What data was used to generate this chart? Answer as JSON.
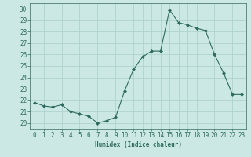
{
  "x": [
    0,
    1,
    2,
    3,
    4,
    5,
    6,
    7,
    8,
    9,
    10,
    11,
    12,
    13,
    14,
    15,
    16,
    17,
    18,
    19,
    20,
    21,
    22,
    23
  ],
  "y": [
    21.8,
    21.5,
    21.4,
    21.6,
    21.0,
    20.8,
    20.6,
    20.0,
    20.2,
    20.5,
    22.8,
    24.7,
    25.8,
    26.3,
    26.3,
    29.9,
    28.8,
    28.6,
    28.3,
    28.1,
    26.0,
    24.4,
    22.5,
    22.5
  ],
  "line_color": "#2e6b5e",
  "bg_color": "#cce8e4",
  "grid_color": "#aacfcc",
  "xlabel": "Humidex (Indice chaleur)",
  "ylim": [
    19.5,
    30.5
  ],
  "xlim": [
    -0.5,
    23.5
  ],
  "yticks": [
    20,
    21,
    22,
    23,
    24,
    25,
    26,
    27,
    28,
    29,
    30
  ],
  "xticks": [
    0,
    1,
    2,
    3,
    4,
    5,
    6,
    7,
    8,
    9,
    10,
    11,
    12,
    13,
    14,
    15,
    16,
    17,
    18,
    19,
    20,
    21,
    22,
    23
  ],
  "label_fontsize": 5.5,
  "tick_fontsize": 5.5
}
